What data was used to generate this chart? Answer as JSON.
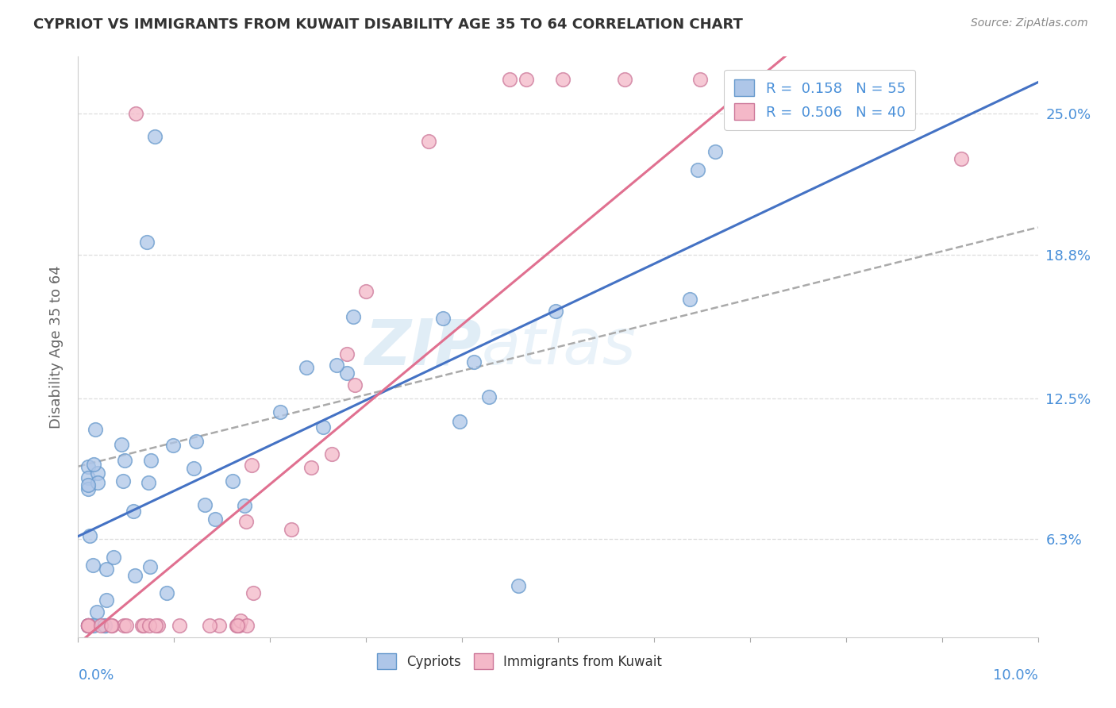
{
  "title": "CYPRIOT VS IMMIGRANTS FROM KUWAIT DISABILITY AGE 35 TO 64 CORRELATION CHART",
  "source": "Source: ZipAtlas.com",
  "ylabel": "Disability Age 35 to 64",
  "ytick_labels": [
    "6.3%",
    "12.5%",
    "18.8%",
    "25.0%"
  ],
  "ytick_values": [
    0.063,
    0.125,
    0.188,
    0.25
  ],
  "xmin": 0.0,
  "xmax": 0.1,
  "ymin": 0.02,
  "ymax": 0.275,
  "watermark_line1": "ZIP",
  "watermark_line2": "atlas",
  "series1_color": "#aec6e8",
  "series1_edge": "#6699cc",
  "series2_color": "#f4b8c8",
  "series2_edge": "#cc7799",
  "trendline1_color": "#4472c4",
  "trendline2_color": "#e07090",
  "trendline_dashed_color": "#aaaaaa",
  "R1": 0.158,
  "N1": 55,
  "R2": 0.506,
  "N2": 40,
  "legend_label1": "R =  0.158   N = 55",
  "legend_label2": "R =  0.506   N = 40",
  "bottom_label1": "Cypriots",
  "bottom_label2": "Immigrants from Kuwait",
  "title_color": "#333333",
  "source_color": "#888888",
  "axis_label_color": "#4a90d9",
  "ylabel_color": "#666666",
  "grid_color": "#dddddd",
  "seed1": 42,
  "seed2": 99
}
